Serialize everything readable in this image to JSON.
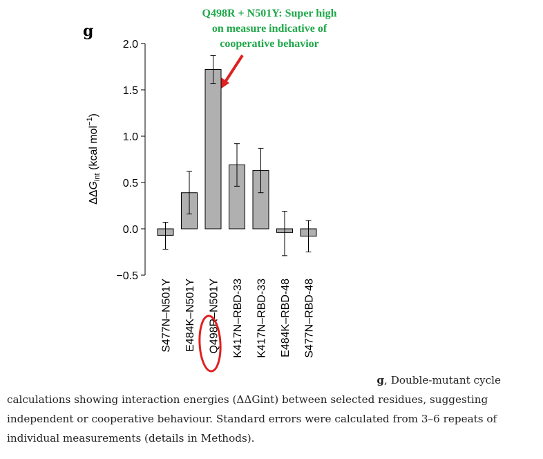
{
  "panel_label": "g",
  "annotation": {
    "lines": [
      "Q498R + N501Y: Super high",
      "on measure indicative of",
      "cooperative behavior"
    ],
    "color": "#1fa84a",
    "arrow_color": "#e02020"
  },
  "highlight_color": "#e02020",
  "bar_color": "#b0b0b0",
  "chart_data": {
    "type": "bar",
    "categories": [
      "S477N–N501Y",
      "E484K–N501Y",
      "Q498R–N501Y",
      "K417N–RBD-33",
      "K417N–RBD-33",
      "E484K–RBD-48",
      "S477N–RBD-48"
    ],
    "values": [
      -0.07,
      0.39,
      1.72,
      0.69,
      0.63,
      -0.04,
      -0.08
    ],
    "errors": [
      [
        -0.22,
        0.07
      ],
      [
        0.16,
        0.62
      ],
      [
        1.57,
        1.87
      ],
      [
        0.46,
        0.92
      ],
      [
        0.39,
        0.87
      ],
      [
        -0.29,
        0.19
      ],
      [
        -0.25,
        0.09
      ]
    ],
    "ylabel_main": "ΔΔ",
    "ylabel_g": "G",
    "ylabel_sub": "int",
    "ylabel_unit": " (kcal mol",
    "ylabel_sup": "−1",
    "ylabel_close": ")",
    "yticks": [
      "−0.5",
      "0.0",
      "0.5",
      "1.0",
      "1.5",
      "2.0"
    ],
    "ylim": [
      -0.5,
      2.0
    ],
    "highlighted_category_index": 2,
    "grid": false
  },
  "caption": {
    "lead_bold": "g",
    "lead_rest": ", Double-mutant cycle",
    "body": "calculations showing interaction energies (ΔΔGint) between selected residues, suggesting independent or cooperative behaviour. Standard errors were calculated from 3–6 repeats of individual measurements (details in Methods)."
  }
}
